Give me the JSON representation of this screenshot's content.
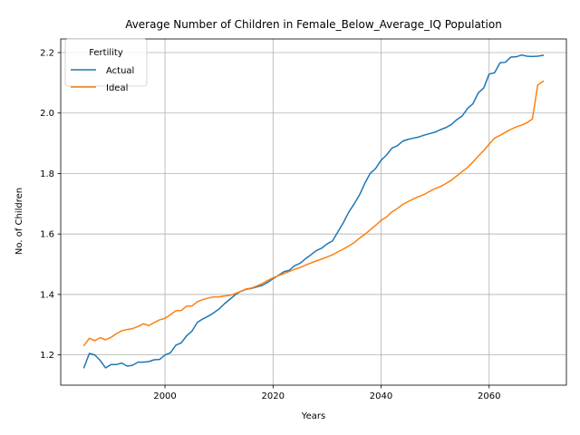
{
  "chart_data": {
    "type": "line",
    "title": "Average Number of Children in Female_Below_Average_IQ Population",
    "xlabel": "Years",
    "ylabel": "No. of Children",
    "xlim": [
      1980.7,
      2074.3
    ],
    "ylim": [
      1.1,
      2.245
    ],
    "xticks": [
      2000,
      2020,
      2040,
      2060
    ],
    "yticks": [
      1.2,
      1.4,
      1.6,
      1.8,
      2.0,
      2.2
    ],
    "grid": true,
    "legend": {
      "title": "Fertility",
      "position": "top-left"
    },
    "x": [
      1985,
      1986,
      1987,
      1988,
      1989,
      1990,
      1991,
      1992,
      1993,
      1994,
      1995,
      1996,
      1997,
      1998,
      1999,
      2000,
      2001,
      2002,
      2003,
      2004,
      2005,
      2006,
      2007,
      2008,
      2009,
      2010,
      2011,
      2012,
      2013,
      2014,
      2015,
      2016,
      2017,
      2018,
      2019,
      2020,
      2021,
      2022,
      2023,
      2024,
      2025,
      2026,
      2027,
      2028,
      2029,
      2030,
      2031,
      2032,
      2033,
      2034,
      2035,
      2036,
      2037,
      2038,
      2039,
      2040,
      2041,
      2042,
      2043,
      2044,
      2045,
      2046,
      2047,
      2048,
      2049,
      2050,
      2051,
      2052,
      2053,
      2054,
      2055,
      2056,
      2057,
      2058,
      2059,
      2060,
      2061,
      2062,
      2063,
      2064,
      2065,
      2066,
      2067,
      2068,
      2069,
      2070
    ],
    "series": [
      {
        "name": "Actual",
        "color": "#1f77b4",
        "values": [
          1.158,
          1.205,
          1.2,
          1.182,
          1.157,
          1.168,
          1.168,
          1.173,
          1.163,
          1.166,
          1.176,
          1.176,
          1.178,
          1.184,
          1.185,
          1.2,
          1.207,
          1.232,
          1.24,
          1.263,
          1.279,
          1.308,
          1.319,
          1.328,
          1.339,
          1.352,
          1.369,
          1.384,
          1.399,
          1.41,
          1.417,
          1.42,
          1.425,
          1.43,
          1.44,
          1.452,
          1.463,
          1.475,
          1.48,
          1.495,
          1.503,
          1.518,
          1.531,
          1.545,
          1.553,
          1.567,
          1.577,
          1.607,
          1.637,
          1.672,
          1.699,
          1.729,
          1.768,
          1.801,
          1.817,
          1.844,
          1.861,
          1.884,
          1.892,
          1.907,
          1.913,
          1.917,
          1.921,
          1.927,
          1.932,
          1.937,
          1.945,
          1.952,
          1.962,
          1.978,
          1.99,
          2.015,
          2.031,
          2.067,
          2.083,
          2.129,
          2.133,
          2.166,
          2.168,
          2.185,
          2.186,
          2.192,
          2.188,
          2.187,
          2.188,
          2.191
        ]
      },
      {
        "name": "Ideal",
        "color": "#ff7f0e",
        "values": [
          1.231,
          1.255,
          1.247,
          1.257,
          1.25,
          1.258,
          1.27,
          1.28,
          1.284,
          1.287,
          1.294,
          1.303,
          1.297,
          1.307,
          1.316,
          1.321,
          1.333,
          1.346,
          1.347,
          1.361,
          1.362,
          1.376,
          1.383,
          1.388,
          1.392,
          1.392,
          1.395,
          1.397,
          1.403,
          1.41,
          1.418,
          1.421,
          1.428,
          1.436,
          1.446,
          1.455,
          1.462,
          1.469,
          1.476,
          1.483,
          1.489,
          1.497,
          1.504,
          1.511,
          1.517,
          1.524,
          1.531,
          1.541,
          1.55,
          1.56,
          1.571,
          1.586,
          1.599,
          1.614,
          1.629,
          1.645,
          1.656,
          1.673,
          1.684,
          1.698,
          1.707,
          1.716,
          1.724,
          1.731,
          1.741,
          1.75,
          1.757,
          1.767,
          1.778,
          1.792,
          1.806,
          1.82,
          1.838,
          1.858,
          1.876,
          1.897,
          1.917,
          1.926,
          1.936,
          1.946,
          1.954,
          1.96,
          1.968,
          1.98,
          2.093,
          2.105
        ]
      }
    ]
  }
}
